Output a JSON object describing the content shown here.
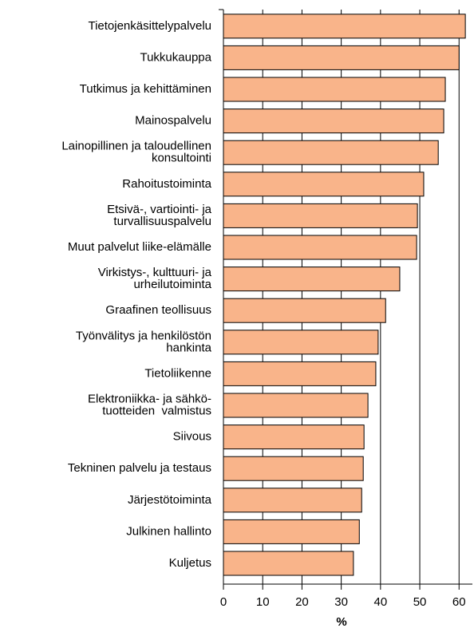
{
  "chart_data": {
    "type": "barh",
    "categories": [
      "Tietojenkäsittelypalvelu",
      "Tukkukauppa",
      "Tutkimus ja kehittäminen",
      "Mainospalvelu",
      "Lainopillinen ja taloudellinen\nkonsultointi",
      "Rahoitustoiminta",
      "Etsivä-, vartiointi- ja\nturvallisuuspalvelu",
      "Muut palvelut liike-elämälle",
      "Virkistys-, kulttuuri- ja\nurheilutoiminta",
      "Graafinen teollisuus",
      "Työnvälitys ja henkilöstön\nhankinta",
      "Tietoliikenne",
      "Elektroniikka- ja sähkö-\ntuotteiden  valmistus",
      "Siivous",
      "Tekninen palvelu ja testaus",
      "Järjestötoiminta",
      "Julkinen hallinto",
      "Kuljetus"
    ],
    "values": [
      61.6,
      60.0,
      56.5,
      56.1,
      54.7,
      51.0,
      49.4,
      49.2,
      44.9,
      41.3,
      39.4,
      38.8,
      36.8,
      35.8,
      35.6,
      35.2,
      34.6,
      33.1
    ],
    "color": "#f9b48a",
    "xlabel": "%",
    "xlim": [
      0,
      63.4
    ],
    "xticks": [
      0,
      10,
      20,
      30,
      40,
      50,
      60
    ],
    "grid": true
  }
}
